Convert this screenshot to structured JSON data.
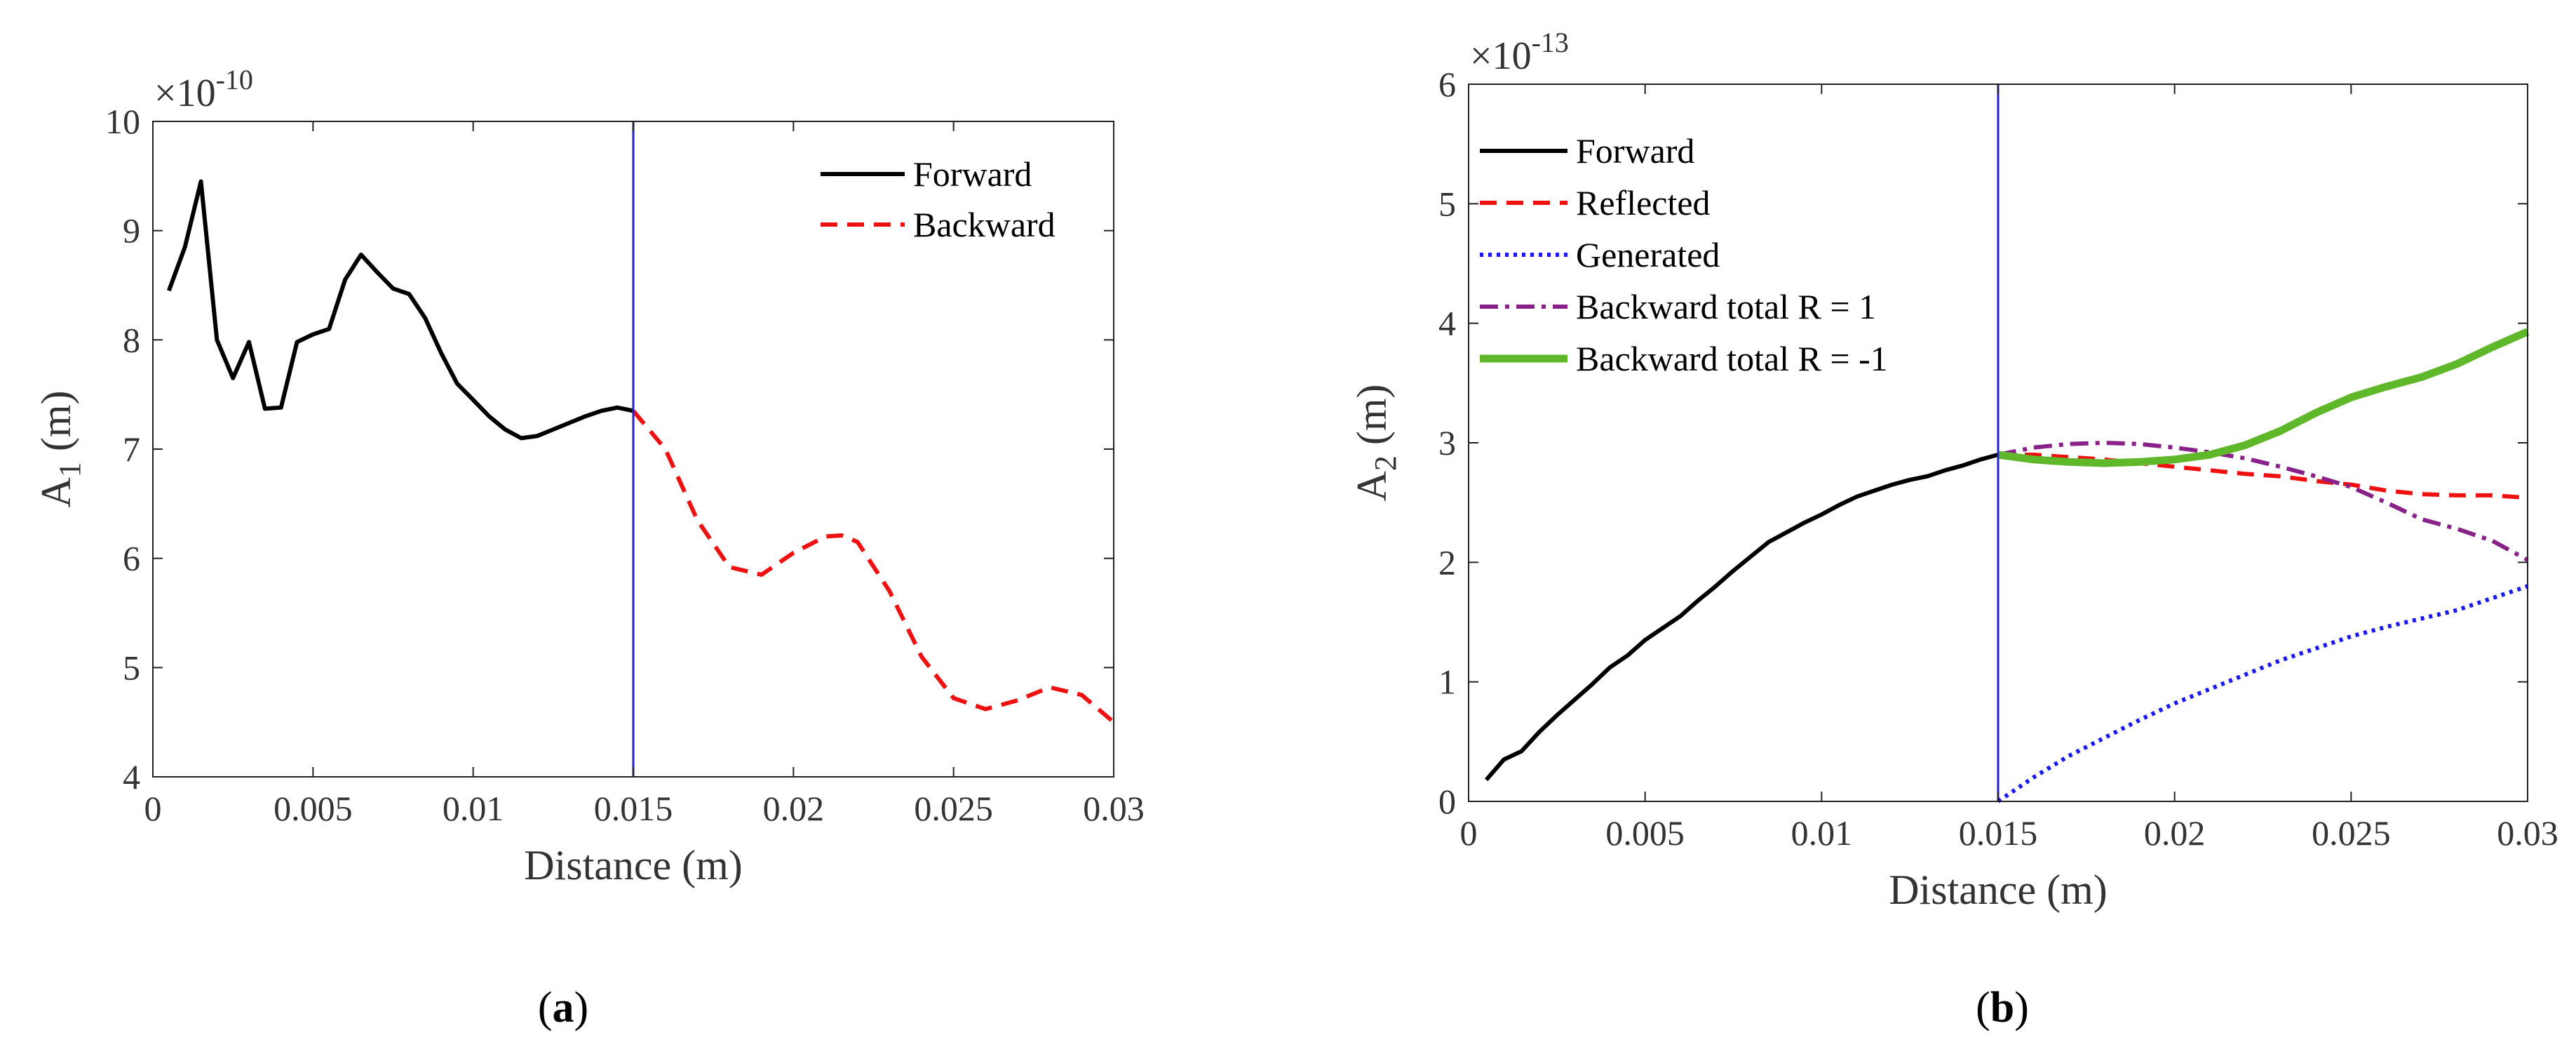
{
  "chart_data": [
    {
      "type": "line",
      "panel_label": {
        "open": "(",
        "letter": "a",
        "close": ")"
      },
      "ylabel": {
        "base": "A",
        "sub": "1",
        "unit": " (m)"
      },
      "xlabel": "Distance (m)",
      "xlim": [
        0,
        0.03
      ],
      "ylim": [
        4,
        10
      ],
      "y_multiplier": {
        "prefix": "×10",
        "exp": "-10"
      },
      "xticks": [
        0,
        0.005,
        0.01,
        0.015,
        0.02,
        0.025,
        0.03
      ],
      "xtick_labels": [
        "0",
        "0.005",
        "0.01",
        "0.015",
        "0.02",
        "0.025",
        "0.03"
      ],
      "yticks": [
        4,
        5,
        6,
        7,
        8,
        9,
        10
      ],
      "ytick_labels": [
        "4",
        "5",
        "6",
        "7",
        "8",
        "9",
        "10"
      ],
      "grid": false,
      "legend_position": "top-right",
      "vertical_line": {
        "x": 0.015,
        "color": "#2222cc"
      },
      "series": [
        {
          "name": "Forward",
          "color": "#000000",
          "style": "solid",
          "x": [
            0.0005,
            0.001,
            0.0015,
            0.002,
            0.0025,
            0.003,
            0.0035,
            0.004,
            0.0045,
            0.005,
            0.0055,
            0.006,
            0.0065,
            0.007,
            0.0075,
            0.008,
            0.0085,
            0.009,
            0.0095,
            0.01,
            0.0105,
            0.011,
            0.0115,
            0.012,
            0.0125,
            0.013,
            0.0135,
            0.014,
            0.0145,
            0.015
          ],
          "values": [
            8.45,
            8.85,
            9.45,
            8.0,
            7.65,
            7.98,
            7.37,
            7.38,
            7.98,
            8.05,
            8.1,
            8.55,
            8.78,
            8.62,
            8.47,
            8.42,
            8.2,
            7.88,
            7.6,
            7.45,
            7.3,
            7.18,
            7.1,
            7.12,
            7.18,
            7.24,
            7.3,
            7.35,
            7.38,
            7.35
          ]
        },
        {
          "name": "Backward",
          "color": "#ee1111",
          "style": "dashed",
          "x": [
            0.015,
            0.016,
            0.017,
            0.018,
            0.019,
            0.02,
            0.021,
            0.0215,
            0.022,
            0.023,
            0.024,
            0.025,
            0.026,
            0.027,
            0.028,
            0.029,
            0.03
          ],
          "values": [
            7.35,
            7.0,
            6.35,
            5.92,
            5.85,
            6.05,
            6.2,
            6.21,
            6.15,
            5.7,
            5.1,
            4.72,
            4.62,
            4.7,
            4.82,
            4.75,
            4.5
          ]
        }
      ]
    },
    {
      "type": "line",
      "panel_label": {
        "open": "(",
        "letter": "b",
        "close": ")"
      },
      "ylabel": {
        "base": "A",
        "sub": "2",
        "unit": " (m)"
      },
      "xlabel": "Distance (m)",
      "xlim": [
        0,
        0.03
      ],
      "ylim": [
        0,
        6
      ],
      "y_multiplier": {
        "prefix": "×10",
        "exp": "-13"
      },
      "xticks": [
        0,
        0.005,
        0.01,
        0.015,
        0.02,
        0.025,
        0.03
      ],
      "xtick_labels": [
        "0",
        "0.005",
        "0.01",
        "0.015",
        "0.02",
        "0.025",
        "0.03"
      ],
      "yticks": [
        0,
        1,
        2,
        3,
        4,
        5,
        6
      ],
      "ytick_labels": [
        "0",
        "1",
        "2",
        "3",
        "4",
        "5",
        "6"
      ],
      "grid": false,
      "legend_position": "top-left",
      "vertical_line": {
        "x": 0.015,
        "color": "#2222cc"
      },
      "series": [
        {
          "name": "Forward",
          "color": "#000000",
          "style": "solid",
          "x": [
            0.0005,
            0.001,
            0.0015,
            0.002,
            0.0025,
            0.003,
            0.0035,
            0.004,
            0.0045,
            0.005,
            0.0055,
            0.006,
            0.0065,
            0.007,
            0.0075,
            0.008,
            0.0085,
            0.009,
            0.0095,
            0.01,
            0.0105,
            0.011,
            0.0115,
            0.012,
            0.0125,
            0.013,
            0.0135,
            0.014,
            0.0145,
            0.015
          ],
          "values": [
            0.18,
            0.35,
            0.42,
            0.58,
            0.72,
            0.85,
            0.98,
            1.12,
            1.22,
            1.35,
            1.45,
            1.55,
            1.68,
            1.8,
            1.93,
            2.05,
            2.17,
            2.25,
            2.33,
            2.4,
            2.48,
            2.55,
            2.6,
            2.65,
            2.69,
            2.72,
            2.77,
            2.81,
            2.86,
            2.9
          ]
        },
        {
          "name": "Reflected",
          "color": "#ee1111",
          "style": "dashed",
          "x": [
            0.015,
            0.016,
            0.017,
            0.018,
            0.019,
            0.02,
            0.021,
            0.022,
            0.023,
            0.024,
            0.025,
            0.026,
            0.027,
            0.028,
            0.029,
            0.03
          ],
          "values": [
            2.9,
            2.9,
            2.88,
            2.86,
            2.83,
            2.8,
            2.77,
            2.74,
            2.72,
            2.68,
            2.65,
            2.6,
            2.57,
            2.56,
            2.56,
            2.54
          ]
        },
        {
          "name": "Generated",
          "color": "#1a1aee",
          "style": "dotted",
          "x": [
            0.015,
            0.016,
            0.017,
            0.018,
            0.019,
            0.02,
            0.021,
            0.022,
            0.023,
            0.024,
            0.025,
            0.026,
            0.027,
            0.028,
            0.029,
            0.03
          ],
          "values": [
            0.0,
            0.2,
            0.38,
            0.53,
            0.68,
            0.82,
            0.94,
            1.06,
            1.18,
            1.28,
            1.38,
            1.46,
            1.53,
            1.6,
            1.7,
            1.8
          ]
        },
        {
          "name": "Backward total R = 1",
          "color": "#882288",
          "style": "dashdot",
          "x": [
            0.015,
            0.016,
            0.017,
            0.018,
            0.019,
            0.02,
            0.021,
            0.022,
            0.023,
            0.024,
            0.025,
            0.026,
            0.027,
            0.028,
            0.029,
            0.03
          ],
          "values": [
            2.9,
            2.96,
            2.99,
            3.0,
            2.99,
            2.96,
            2.92,
            2.87,
            2.8,
            2.72,
            2.63,
            2.5,
            2.36,
            2.28,
            2.18,
            2.02
          ]
        },
        {
          "name": "Backward total R = -1",
          "color": "#5fb82a",
          "style": "solid-thick",
          "x": [
            0.015,
            0.016,
            0.017,
            0.018,
            0.019,
            0.02,
            0.021,
            0.022,
            0.023,
            0.024,
            0.025,
            0.026,
            0.027,
            0.028,
            0.029,
            0.03
          ],
          "values": [
            2.9,
            2.86,
            2.84,
            2.83,
            2.84,
            2.86,
            2.9,
            2.98,
            3.1,
            3.25,
            3.38,
            3.47,
            3.55,
            3.66,
            3.8,
            3.93
          ]
        }
      ]
    }
  ]
}
